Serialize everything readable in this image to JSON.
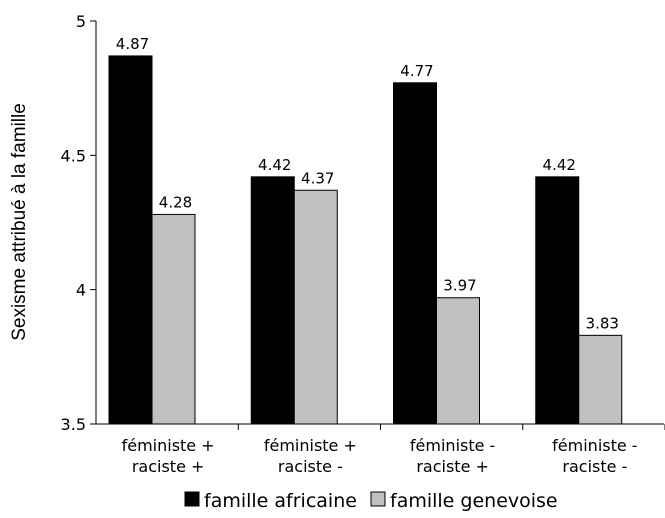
{
  "chart_data": {
    "type": "bar",
    "categories": [
      [
        "féministe +",
        "raciste +"
      ],
      [
        "féministe +",
        "raciste -"
      ],
      [
        "féministe -",
        "raciste +"
      ],
      [
        "féministe -",
        "raciste -"
      ]
    ],
    "series": [
      {
        "name": "famille africaine",
        "values": [
          4.87,
          4.42,
          4.77,
          4.42
        ],
        "color": "#000000"
      },
      {
        "name": "famille genevoise",
        "values": [
          4.28,
          4.37,
          3.97,
          3.83
        ],
        "color": "#c0c0c0"
      }
    ],
    "title": "",
    "xlabel": "",
    "ylabel": "Sexisme attribué à la famille",
    "ylim": [
      3.5,
      5
    ],
    "yticks": [
      "3.5",
      "4",
      "4.5",
      "5"
    ],
    "grid": false,
    "legend_position": "bottom"
  }
}
